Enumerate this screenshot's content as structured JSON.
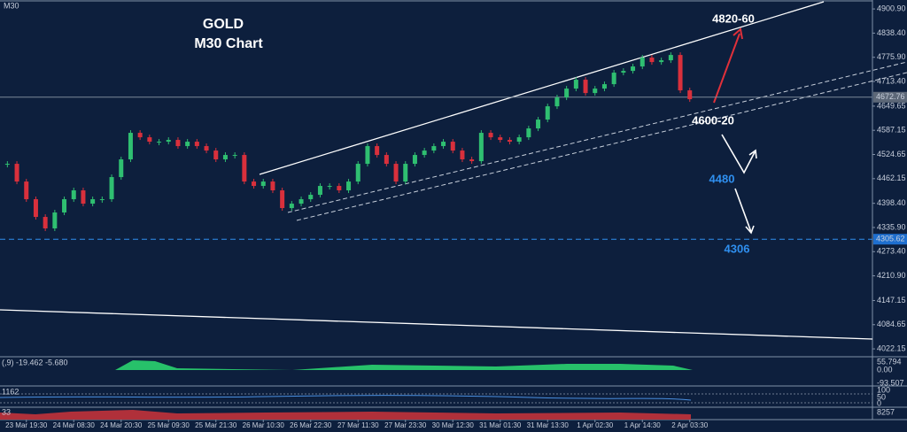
{
  "chart_data": {
    "type": "candlestick",
    "symbol_label": "M30",
    "title": "GOLD",
    "subtitle": "M30 Chart",
    "ylim": [
      4004,
      4924
    ],
    "yticks": [
      {
        "value": 4900.9,
        "label": "4900.90"
      },
      {
        "value": 4838.4,
        "label": "4838.40"
      },
      {
        "value": 4775.9,
        "label": "4775.90"
      },
      {
        "value": 4713.4,
        "label": "4713.40"
      },
      4649.65,
      4587.15,
      4524.65,
      4462.15,
      {
        "value": 4398.4,
        "label": "4398.40"
      },
      {
        "value": 4335.9,
        "label": "4335.90"
      },
      {
        "value": 4273.4,
        "label": "4273.40"
      },
      {
        "value": 4210.9,
        "label": "4210.90"
      },
      4147.15,
      4084.65,
      4022.15
    ],
    "up_color": "#2fbf71",
    "down_color": "#d9303c",
    "candles": [
      {
        "time": "23 Mar 19:30",
        "close": [
          4500.5,
          4454.7,
          4409.0,
          4363.2,
          4333.5
        ]
      },
      {
        "time": "24 Mar 08:30",
        "close": [
          4374.7,
          4409.0,
          4431.9,
          4397.5,
          4409.0
        ]
      },
      {
        "time": "24 Mar 20:30",
        "close": [
          4409.0,
          4466.2,
          4512.0,
          4580.6,
          4569.1
        ]
      },
      {
        "time": "25 Mar 09:30",
        "close": [
          4557.7,
          4557.7,
          4562.3,
          4546.3,
          4557.7
        ]
      },
      {
        "time": "25 Mar 21:30",
        "close": [
          4546.3,
          4534.8,
          4512.0,
          4523.4,
          4523.4
        ]
      },
      {
        "time": "26 Mar 10:30",
        "close": [
          4454.7,
          4443.3,
          4454.7,
          4431.9,
          4386.1
        ]
      },
      {
        "time": "26 Mar 22:30",
        "close": [
          4397.5,
          4409.0,
          4420.4,
          4443.3,
          4443.3
        ]
      },
      {
        "time": "27 Mar 11:30",
        "close": [
          4431.9,
          4454.7,
          4500.5,
          4546.3,
          4523.4
        ]
      },
      {
        "time": "27 Mar 23:30",
        "close": [
          4500.5,
          4454.7,
          4500.5,
          4523.4,
          4534.8
        ]
      },
      {
        "time": "30 Mar 12:30",
        "close": [
          4546.3,
          4557.7,
          4534.8,
          4512.0,
          4507.4
        ]
      },
      {
        "time": "31 Mar 01:30",
        "close": [
          4580.6,
          4569.1,
          4562.3,
          4557.7,
          4569.1
        ]
      },
      {
        "time": "31 Mar 13:30",
        "close": [
          4592.0,
          4614.9,
          4649.2,
          4672.1,
          4695.0
        ]
      },
      {
        "time": "1 Apr 02:30",
        "close": [
          4717.9,
          4683.5,
          4695.0,
          4706.4,
          4736.2
        ]
      },
      {
        "time": "1 Apr 14:30",
        "close": [
          4740.7,
          4752.2,
          4775.1,
          4763.6,
          4768.2
        ]
      },
      {
        "time": "2 Apr 03:30",
        "close": [
          4781.9,
          4690.4,
          4667.5
        ]
      }
    ],
    "current_price": 4672.76,
    "support_price": 4305.62,
    "annotations": [
      "4820-60",
      "4600-20",
      "4480",
      "4306"
    ],
    "indicators": {
      "macd_label": "(,9) -19.462 -5.680",
      "macd_ticks": [
        "55.794",
        "0.00",
        "-93.507"
      ],
      "rsi_label": "1162",
      "rsi_ticks": [
        "100",
        "50",
        "0"
      ],
      "volume_label": "33",
      "volume_ticks": [
        "8257"
      ]
    }
  }
}
